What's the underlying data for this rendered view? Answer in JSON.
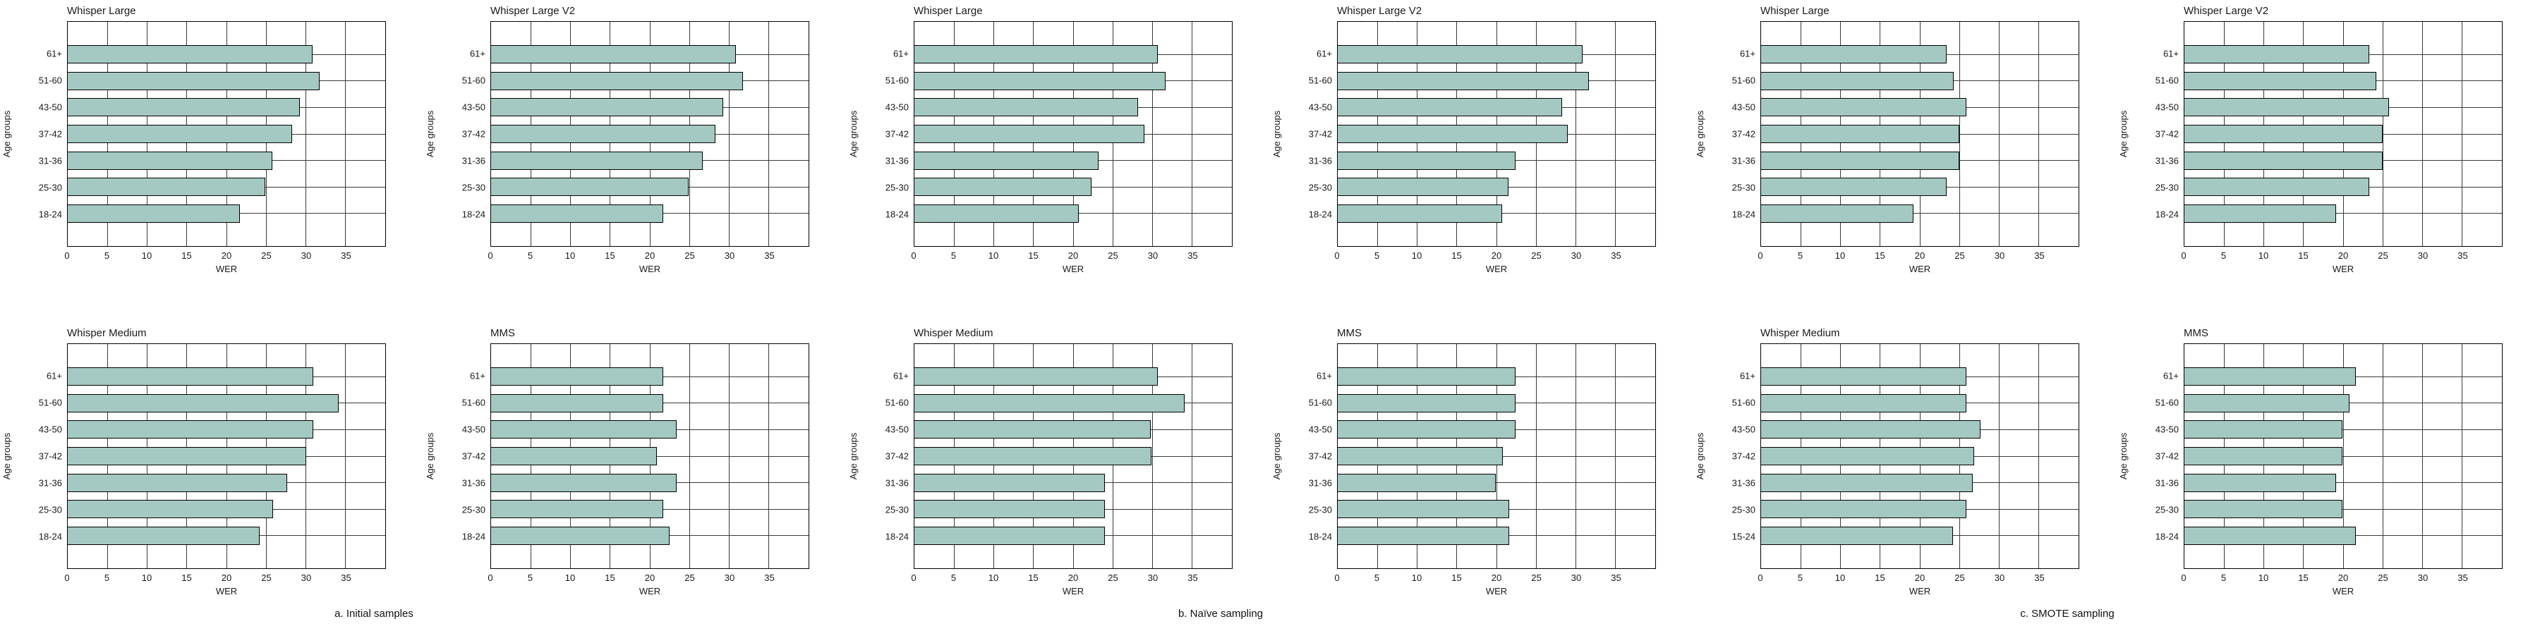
{
  "figure": {
    "background": "#ffffff",
    "bar_fill": "#a4c9c2",
    "bar_border": "#000000",
    "grid_color": "#3a3a3a",
    "frame_color": "#000000",
    "text_color": "#1a1a1a"
  },
  "axis": {
    "xlabel": "WER",
    "ylabel": "Age groups",
    "xlim": [
      0,
      40
    ],
    "xticks": [
      0,
      5,
      10,
      15,
      20,
      25,
      30,
      35
    ],
    "grid": true
  },
  "group_captions": [
    "a. Initial samples",
    "b. Naïve sampling",
    "c. SMOTE sampling"
  ],
  "chart_data": [
    {
      "type": "bar",
      "orientation": "horizontal",
      "group": 0,
      "row": 0,
      "col": 0,
      "title": "Whisper Large",
      "xlabel": "WER",
      "ylabel": "Age groups",
      "xlim": [
        0,
        40
      ],
      "categories_top_to_bottom": [
        "61+",
        "51-60",
        "43-50",
        "37-42",
        "31-36",
        "25-30",
        "18-24"
      ],
      "values": [
        30.8,
        31.7,
        29.2,
        28.3,
        25.8,
        24.9,
        21.7
      ]
    },
    {
      "type": "bar",
      "orientation": "horizontal",
      "group": 0,
      "row": 0,
      "col": 1,
      "title": "Whisper Large V2",
      "xlabel": "WER",
      "ylabel": "Age groups",
      "xlim": [
        0,
        40
      ],
      "categories_top_to_bottom": [
        "61+",
        "51-60",
        "43-50",
        "37-42",
        "31-36",
        "25-30",
        "18-24"
      ],
      "values": [
        30.8,
        31.7,
        29.2,
        28.3,
        26.7,
        24.9,
        21.7
      ]
    },
    {
      "type": "bar",
      "orientation": "horizontal",
      "group": 1,
      "row": 0,
      "col": 2,
      "title": "Whisper Large",
      "xlabel": "WER",
      "ylabel": "Age groups",
      "xlim": [
        0,
        40
      ],
      "categories_top_to_bottom": [
        "61+",
        "51-60",
        "43-50",
        "37-42",
        "31-36",
        "25-30",
        "18-24"
      ],
      "values": [
        30.7,
        31.6,
        28.2,
        29.0,
        23.2,
        22.3,
        20.7
      ]
    },
    {
      "type": "bar",
      "orientation": "horizontal",
      "group": 1,
      "row": 0,
      "col": 3,
      "title": "Whisper Large V2",
      "xlabel": "WER",
      "ylabel": "Age groups",
      "xlim": [
        0,
        40
      ],
      "categories_top_to_bottom": [
        "61+",
        "51-60",
        "43-50",
        "37-42",
        "31-36",
        "25-30",
        "18-24"
      ],
      "values": [
        30.8,
        31.6,
        28.3,
        29.0,
        22.4,
        21.5,
        20.7
      ]
    },
    {
      "type": "bar",
      "orientation": "horizontal",
      "group": 2,
      "row": 0,
      "col": 4,
      "title": "Whisper Large",
      "xlabel": "WER",
      "ylabel": "Age groups",
      "xlim": [
        0,
        40
      ],
      "categories_top_to_bottom": [
        "61+",
        "51-60",
        "43-50",
        "37-42",
        "31-36",
        "25-30",
        "18-24"
      ],
      "values": [
        23.4,
        24.3,
        25.9,
        25.0,
        25.0,
        23.4,
        19.2
      ]
    },
    {
      "type": "bar",
      "orientation": "horizontal",
      "group": 2,
      "row": 0,
      "col": 5,
      "title": "Whisper Large V2",
      "xlabel": "WER",
      "ylabel": "Age groups",
      "xlim": [
        0,
        40
      ],
      "categories_top_to_bottom": [
        "61+",
        "51-60",
        "43-50",
        "37-42",
        "31-36",
        "25-30",
        "18-24"
      ],
      "values": [
        23.3,
        24.2,
        25.8,
        25.0,
        25.0,
        23.3,
        19.1
      ]
    },
    {
      "type": "bar",
      "orientation": "horizontal",
      "group": 0,
      "row": 1,
      "col": 0,
      "title": "Whisper Medium",
      "xlabel": "WER",
      "ylabel": "Age groups",
      "xlim": [
        0,
        40
      ],
      "categories_top_to_bottom": [
        "61+",
        "51-60",
        "43-50",
        "37-42",
        "31-36",
        "25-30",
        "18-24"
      ],
      "values": [
        30.9,
        34.1,
        30.9,
        30.0,
        27.6,
        25.9,
        24.2
      ]
    },
    {
      "type": "bar",
      "orientation": "horizontal",
      "group": 0,
      "row": 1,
      "col": 1,
      "title": "MMS",
      "xlabel": "WER",
      "ylabel": "Age groups",
      "xlim": [
        0,
        40
      ],
      "categories_top_to_bottom": [
        "61+",
        "51-60",
        "43-50",
        "37-42",
        "31-36",
        "25-30",
        "18-24"
      ],
      "values": [
        21.7,
        21.7,
        23.4,
        20.9,
        23.4,
        21.7,
        22.5
      ]
    },
    {
      "type": "bar",
      "orientation": "horizontal",
      "group": 1,
      "row": 1,
      "col": 2,
      "title": "Whisper Medium",
      "xlabel": "WER",
      "ylabel": "Age groups",
      "xlim": [
        0,
        40
      ],
      "categories_top_to_bottom": [
        "61+",
        "51-60",
        "43-50",
        "37-42",
        "31-36",
        "25-30",
        "18-24"
      ],
      "values": [
        30.7,
        34.0,
        29.8,
        29.9,
        24.0,
        24.0,
        24.0
      ]
    },
    {
      "type": "bar",
      "orientation": "horizontal",
      "group": 1,
      "row": 1,
      "col": 3,
      "title": "MMS",
      "xlabel": "WER",
      "ylabel": "Age groups",
      "xlim": [
        0,
        40
      ],
      "categories_top_to_bottom": [
        "61+",
        "51-60",
        "43-50",
        "37-42",
        "31-36",
        "25-30",
        "18-24"
      ],
      "values": [
        22.4,
        22.4,
        22.4,
        20.8,
        19.9,
        21.6,
        21.6
      ]
    },
    {
      "type": "bar",
      "orientation": "horizontal",
      "group": 2,
      "row": 1,
      "col": 4,
      "title": "Whisper Medium",
      "xlabel": "WER",
      "ylabel": "Age groups",
      "xlim": [
        0,
        40
      ],
      "categories_top_to_bottom": [
        "61+",
        "51-60",
        "43-50",
        "37-42",
        "31-36",
        "25-30",
        "15-24"
      ],
      "values": [
        25.9,
        25.9,
        27.6,
        26.8,
        26.7,
        25.9,
        24.2
      ]
    },
    {
      "type": "bar",
      "orientation": "horizontal",
      "group": 2,
      "row": 1,
      "col": 5,
      "title": "MMS",
      "xlabel": "WER",
      "ylabel": "Age groups",
      "xlim": [
        0,
        40
      ],
      "categories_top_to_bottom": [
        "61+",
        "51-60",
        "43-50",
        "37-42",
        "31-36",
        "25-30",
        "18-24"
      ],
      "values": [
        21.6,
        20.8,
        19.9,
        19.9,
        19.1,
        19.9,
        21.6
      ]
    }
  ]
}
